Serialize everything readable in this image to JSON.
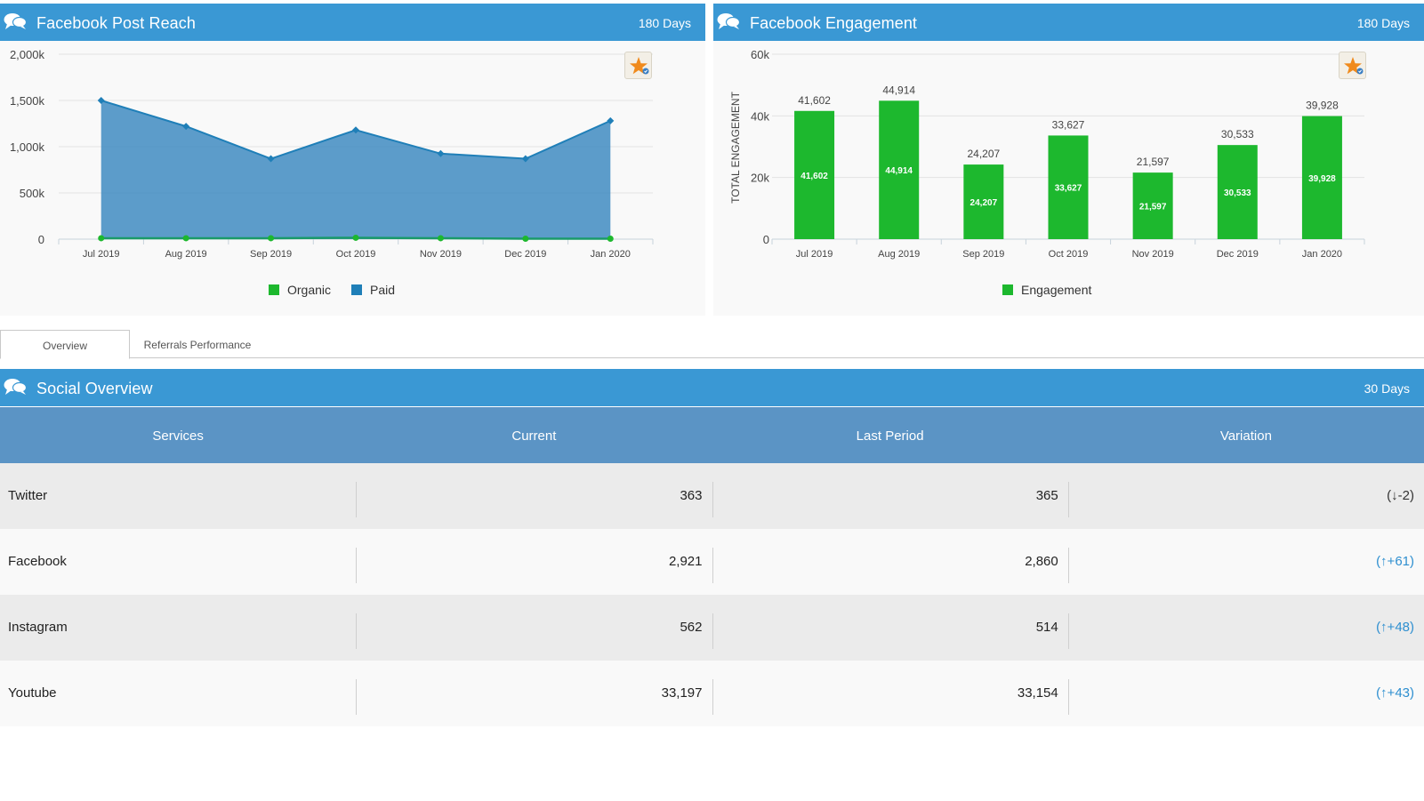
{
  "reach_panel": {
    "title": "Facebook Post Reach",
    "days": "180 Days",
    "icon": "chat-bubbles-icon",
    "chart_data": {
      "type": "area",
      "categories": [
        "Jul 2019",
        "Aug 2019",
        "Sep 2019",
        "Oct 2019",
        "Nov 2019",
        "Dec 2019",
        "Jan 2020"
      ],
      "series": [
        {
          "name": "Organic",
          "color": "#1db82e",
          "values": [
            10,
            10,
            10,
            15,
            10,
            5,
            5
          ]
        },
        {
          "name": "Paid",
          "color": "#1f7fb8",
          "values": [
            1500,
            1220,
            870,
            1180,
            925,
            870,
            1280
          ]
        }
      ],
      "y_ticks": [
        "2,000k",
        "1,500k",
        "1,000k",
        "500k",
        "0"
      ],
      "ylim": [
        0,
        2000
      ],
      "legend": [
        {
          "label": "Organic",
          "color": "#1db82e"
        },
        {
          "label": "Paid",
          "color": "#1f7fb8"
        }
      ],
      "grid": true,
      "legend_position": "bottom"
    }
  },
  "engagement_panel": {
    "title": "Facebook Engagement",
    "days": "180 Days",
    "icon": "chat-bubbles-icon",
    "chart_data": {
      "type": "bar",
      "categories": [
        "Jul 2019",
        "Aug 2019",
        "Sep 2019",
        "Oct 2019",
        "Nov 2019",
        "Dec 2019",
        "Jan 2020"
      ],
      "series": [
        {
          "name": "Engagement",
          "color": "#1db82e",
          "values": [
            41602,
            44914,
            24207,
            33627,
            21597,
            30533,
            39928
          ]
        }
      ],
      "value_labels": [
        "41,602",
        "44,914",
        "24,207",
        "33,627",
        "21,597",
        "30,533",
        "39,928"
      ],
      "y_ticks": [
        "60k",
        "40k",
        "20k",
        "0"
      ],
      "ylim": [
        0,
        60000
      ],
      "ylabel": "TOTAL ENGAGEMENT",
      "legend": [
        {
          "label": "Engagement",
          "color": "#1db82e"
        }
      ],
      "grid": true,
      "legend_position": "bottom"
    }
  },
  "tabs": [
    {
      "label": "Overview",
      "active": true
    },
    {
      "label": "Referrals Performance",
      "active": false
    }
  ],
  "overview": {
    "title": "Social Overview",
    "days": "30 Days",
    "icon": "chat-bubbles-icon",
    "columns": [
      "Services",
      "Current",
      "Last Period",
      "Variation"
    ],
    "rows": [
      {
        "service": "Twitter",
        "current": "363",
        "last": "365",
        "variation": "(↓-2)",
        "direction": "down"
      },
      {
        "service": "Facebook",
        "current": "2,921",
        "last": "2,860",
        "variation": "(↑+61)",
        "direction": "up"
      },
      {
        "service": "Instagram",
        "current": "562",
        "last": "514",
        "variation": "(↑+48)",
        "direction": "up"
      },
      {
        "service": "Youtube",
        "current": "33,197",
        "last": "33,154",
        "variation": "(↑+43)",
        "direction": "up"
      }
    ]
  },
  "colors": {
    "header_blue": "#3a98d4",
    "table_header": "#5b94c5",
    "green": "#1db82e",
    "paid_blue": "#1f7fb8",
    "variation_up": "#2e8fd0"
  },
  "favorite_icon": "favorite-star-icon"
}
